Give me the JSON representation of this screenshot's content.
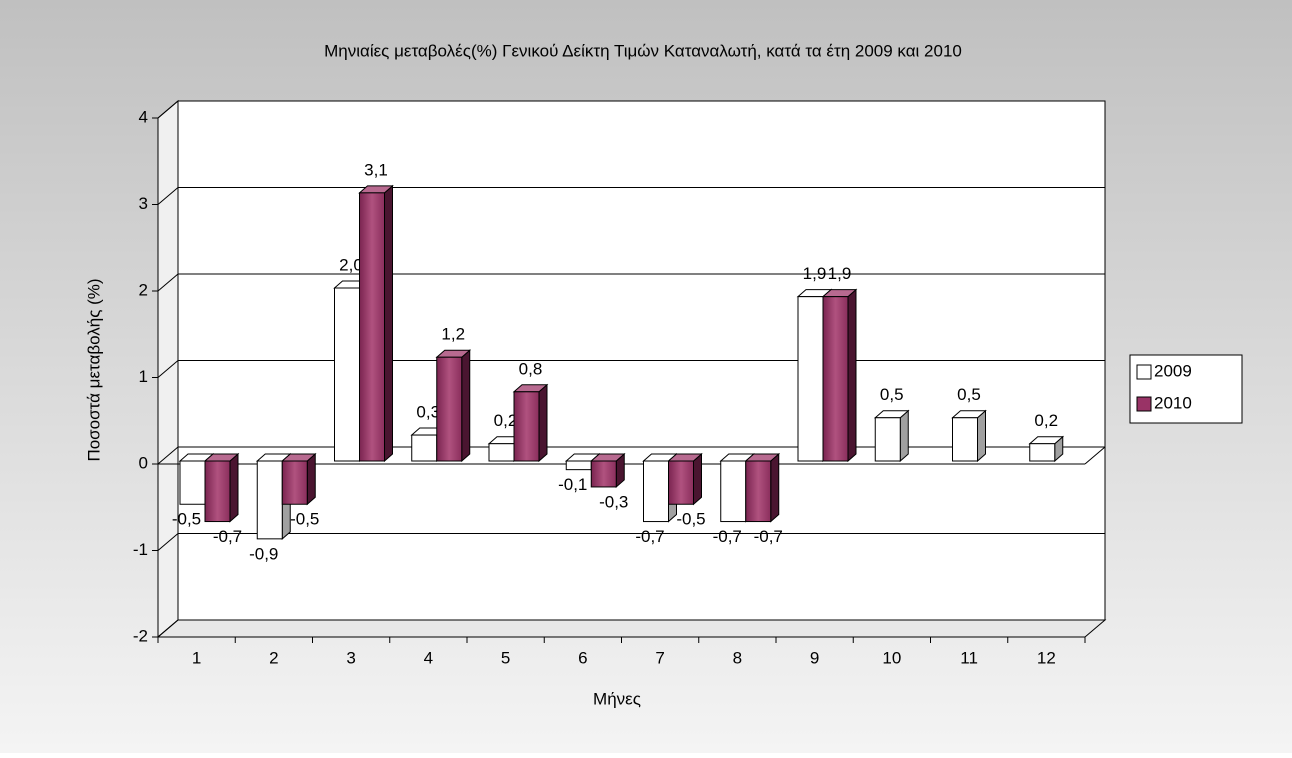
{
  "chart_data": {
    "type": "bar3d",
    "title": "Μηνιαίες μεταβολές(%) Γενικού Δείκτη Τιμών Καταναλωτή, κατά τα έτη 2009 και 2010",
    "x_label": "Μήνες",
    "y_label": "Ποσοστά μεταβολής (%)",
    "categories": [
      "1",
      "2",
      "3",
      "4",
      "5",
      "6",
      "7",
      "8",
      "9",
      "10",
      "11",
      "12"
    ],
    "series": [
      {
        "name": "2009",
        "color": "#ffffff",
        "values": [
          -0.5,
          -0.9,
          2.0,
          0.3,
          0.2,
          -0.1,
          -0.7,
          -0.7,
          1.9,
          0.5,
          0.5,
          0.2
        ],
        "value_labels": [
          "-0,5",
          "-0,9",
          "2,0",
          "0,3",
          "0,2",
          "-0,1",
          "-0,7",
          "-0,7",
          "1,9",
          "0,5",
          "0,5",
          "0,2"
        ]
      },
      {
        "name": "2010",
        "color": "#993366",
        "values": [
          -0.7,
          -0.5,
          3.1,
          1.2,
          0.8,
          -0.3,
          -0.5,
          -0.7,
          1.9,
          null,
          null,
          null
        ],
        "value_labels": [
          "-0,7",
          "-0,5",
          "3,1",
          "1,2",
          "0,8",
          "-0,3",
          "-0,5",
          "-0,7",
          "1,9",
          null,
          null,
          null
        ]
      }
    ],
    "ylim": [
      -2,
      4
    ],
    "yticks": [
      -2,
      -1,
      0,
      1,
      2,
      3,
      4
    ],
    "grid": true,
    "legend": "right"
  }
}
